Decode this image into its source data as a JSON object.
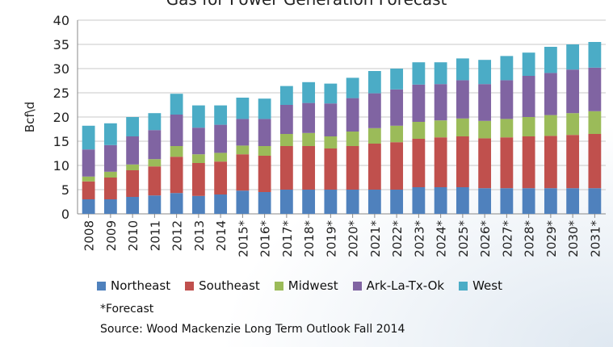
{
  "chart_data": {
    "type": "bar",
    "stacked": true,
    "title": "Gas for Power Generation Forecast",
    "ylabel": "Bcf\\d",
    "ylim": [
      0,
      40
    ],
    "yticks": [
      0,
      5,
      10,
      15,
      20,
      25,
      30,
      35,
      40
    ],
    "grid": true,
    "legend_position": "bottom",
    "categories": [
      "2008",
      "2009",
      "2010",
      "2011",
      "2012",
      "2013",
      "2014",
      "2015*",
      "2016*",
      "2017*",
      "2018*",
      "2019*",
      "2020*",
      "2021*",
      "2022*",
      "2023*",
      "2024*",
      "2025*",
      "2026*",
      "2027*",
      "2028*",
      "2029*",
      "2030*",
      "2031*"
    ],
    "series": [
      {
        "name": "Northeast",
        "color": "#4f81bd",
        "values": [
          3.0,
          3.0,
          3.5,
          3.8,
          4.3,
          3.7,
          4.0,
          4.8,
          4.5,
          5.0,
          5.0,
          5.0,
          5.0,
          5.0,
          5.0,
          5.5,
          5.5,
          5.5,
          5.3,
          5.3,
          5.3,
          5.3,
          5.3,
          5.3
        ]
      },
      {
        "name": "Southeast",
        "color": "#c0504d",
        "values": [
          3.7,
          4.5,
          5.5,
          6.0,
          7.5,
          6.8,
          6.8,
          7.5,
          7.5,
          9.0,
          9.0,
          8.5,
          9.0,
          9.5,
          9.8,
          10.0,
          10.3,
          10.5,
          10.3,
          10.5,
          10.7,
          10.8,
          11.0,
          11.2
        ]
      },
      {
        "name": "Midwest",
        "color": "#9bbb59",
        "values": [
          1.0,
          1.2,
          1.2,
          1.5,
          2.2,
          1.8,
          1.8,
          1.8,
          2.0,
          2.5,
          2.7,
          2.5,
          3.0,
          3.2,
          3.4,
          3.5,
          3.5,
          3.7,
          3.6,
          3.8,
          4.0,
          4.3,
          4.5,
          4.7
        ]
      },
      {
        "name": "Ark-La-Tx-Ok",
        "color": "#8064a2",
        "values": [
          5.6,
          5.5,
          5.8,
          6.0,
          6.5,
          5.5,
          5.8,
          5.5,
          5.6,
          6.0,
          6.2,
          6.8,
          6.9,
          7.2,
          7.5,
          7.7,
          7.5,
          7.9,
          7.6,
          8.0,
          8.5,
          8.7,
          9.0,
          9.0
        ]
      },
      {
        "name": "West",
        "color": "#4bacc6",
        "values": [
          4.9,
          4.5,
          4.0,
          3.5,
          4.3,
          4.6,
          4.0,
          4.4,
          4.2,
          3.9,
          4.3,
          4.1,
          4.2,
          4.6,
          4.3,
          4.6,
          4.5,
          4.5,
          5.0,
          5.0,
          4.8,
          5.4,
          5.2,
          5.3
        ]
      }
    ]
  },
  "notes": {
    "forecast": "*Forecast",
    "source": "Source: Wood Mackenzie Long Term Outlook Fall 2014"
  }
}
